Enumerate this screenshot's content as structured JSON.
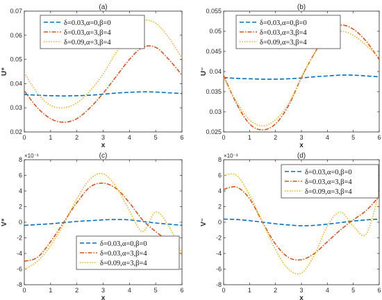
{
  "chart_data": [
    {
      "panel": "(a)",
      "type": "line",
      "title": "(a)",
      "xlabel": "x",
      "ylabel": "U⁺",
      "multiplier": "",
      "xlim": [
        0,
        6
      ],
      "ylim": [
        0.02,
        0.07
      ],
      "xticks": [
        "0",
        "1",
        "2",
        "3",
        "4",
        "5",
        "6"
      ],
      "yticks": [
        "0.02",
        "0.03",
        "0.04",
        "0.05",
        "0.06",
        "0.07"
      ],
      "legend_position": "top-left",
      "x": [
        0,
        0.5,
        1,
        1.5,
        2,
        2.5,
        3,
        3.5,
        4,
        4.5,
        5,
        5.5,
        6
      ],
      "series": [
        {
          "name": "δ=0.03,α=0,β=0",
          "color": "#0072BD",
          "dash": "6,3",
          "values": [
            0.0355,
            0.0352,
            0.035,
            0.0349,
            0.035,
            0.0352,
            0.0356,
            0.0361,
            0.0364,
            0.0366,
            0.0365,
            0.0362,
            0.0359
          ]
        },
        {
          "name": "δ=0.03,α=3,β=4",
          "color": "#D95319",
          "dash": "6,2,1.5,2",
          "values": [
            0.037,
            0.03,
            0.0255,
            0.024,
            0.0255,
            0.03,
            0.036,
            0.043,
            0.05,
            0.055,
            0.055,
            0.05,
            0.0435
          ]
        },
        {
          "name": "δ=0.09,α=3,β=4",
          "color": "#EDB120",
          "dash": "1.5,2",
          "values": [
            0.0445,
            0.036,
            0.031,
            0.03,
            0.032,
            0.037,
            0.044,
            0.053,
            0.061,
            0.066,
            0.065,
            0.059,
            0.0505
          ]
        }
      ]
    },
    {
      "panel": "(b)",
      "type": "line",
      "title": "(b)",
      "xlabel": "x",
      "ylabel": "U⁻",
      "multiplier": "",
      "xlim": [
        0,
        6
      ],
      "ylim": [
        0.025,
        0.055
      ],
      "xticks": [
        "0",
        "1",
        "2",
        "3",
        "4",
        "5",
        "6"
      ],
      "yticks": [
        "0.025",
        "0.03",
        "0.035",
        "0.04",
        "0.045",
        "0.05",
        "0.055"
      ],
      "legend_position": "top-left",
      "x": [
        0,
        0.5,
        1,
        1.5,
        2,
        2.5,
        3,
        3.5,
        4,
        4.5,
        5,
        5.5,
        6
      ],
      "series": [
        {
          "name": "δ=0.03,α=0,β=0",
          "color": "#0072BD",
          "dash": "6,3",
          "values": [
            0.0385,
            0.0383,
            0.0382,
            0.0381,
            0.0381,
            0.0382,
            0.0384,
            0.0387,
            0.0389,
            0.0391,
            0.0391,
            0.0389,
            0.0387
          ]
        },
        {
          "name": "δ=0.03,α=3,β=4",
          "color": "#D95319",
          "dash": "6,2,1.5,2",
          "values": [
            0.039,
            0.032,
            0.027,
            0.0255,
            0.027,
            0.0315,
            0.0385,
            0.0445,
            0.0495,
            0.0515,
            0.0505,
            0.0475,
            0.043
          ]
        },
        {
          "name": "δ=0.09,α=3,β=4",
          "color": "#EDB120",
          "dash": "1.5,2",
          "values": [
            0.0385,
            0.0325,
            0.028,
            0.0265,
            0.028,
            0.032,
            0.0385,
            0.0445,
            0.0485,
            0.05,
            0.049,
            0.0465,
            0.0435
          ]
        }
      ]
    },
    {
      "panel": "(c)",
      "type": "line",
      "title": "(c)",
      "xlabel": "x",
      "ylabel": "V⁺",
      "multiplier": "×10⁻³",
      "xlim": [
        0,
        6
      ],
      "ylim": [
        -8,
        8
      ],
      "xticks": [
        "0",
        "1",
        "2",
        "3",
        "4",
        "5",
        "6"
      ],
      "yticks": [
        "-8",
        "-6",
        "-4",
        "-2",
        "0",
        "2",
        "4",
        "6",
        "8"
      ],
      "legend_position": "bottom-right",
      "x": [
        0,
        0.5,
        1,
        1.5,
        2,
        2.5,
        3,
        3.5,
        4,
        4.5,
        5,
        5.5,
        6
      ],
      "series": [
        {
          "name": "δ=0.03,α=0,β=0",
          "color": "#0072BD",
          "dash": "6,3",
          "values": [
            -0.4,
            -0.3,
            -0.2,
            -0.05,
            0.1,
            0.2,
            0.3,
            0.35,
            0.3,
            0.1,
            -0.1,
            -0.25,
            -0.4
          ]
        },
        {
          "name": "δ=0.03,α=3,β=4",
          "color": "#D95319",
          "dash": "6,2,1.5,2",
          "values": [
            -5.0,
            -4.5,
            -2.5,
            0.0,
            2.5,
            4.5,
            5.0,
            4.3,
            2.5,
            0.3,
            -1.2,
            -2.5,
            -4.2
          ]
        },
        {
          "name": "δ=0.09,α=3,β=4",
          "color": "#EDB120",
          "dash": "1.5,2",
          "values": [
            -6.0,
            -5.0,
            -3.0,
            -0.2,
            3.0,
            5.5,
            6.2,
            4.5,
            1.5,
            -1.2,
            1.3,
            -0.5,
            -4.0
          ]
        }
      ]
    },
    {
      "panel": "(d)",
      "type": "line",
      "title": "(d)",
      "xlabel": "x",
      "ylabel": "V⁻",
      "multiplier": "×10⁻³",
      "xlim": [
        0,
        6
      ],
      "ylim": [
        -8,
        8
      ],
      "xticks": [
        "0",
        "1",
        "2",
        "3",
        "4",
        "5",
        "6"
      ],
      "yticks": [
        "-8",
        "-6",
        "-4",
        "-2",
        "0",
        "2",
        "4",
        "6",
        "8"
      ],
      "legend_position": "top-right",
      "x": [
        0,
        0.5,
        1,
        1.5,
        2,
        2.5,
        3,
        3.5,
        4,
        4.5,
        5,
        5.5,
        6
      ],
      "series": [
        {
          "name": "δ=0.03,α=0,β=0",
          "color": "#0072BD",
          "dash": "6,3",
          "values": [
            0.4,
            0.35,
            0.2,
            0.0,
            -0.2,
            -0.35,
            -0.45,
            -0.4,
            -0.25,
            -0.05,
            0.15,
            0.3,
            0.4
          ]
        },
        {
          "name": "δ=0.03,α=3,β=4",
          "color": "#D95319",
          "dash": "6,2,1.5,2",
          "values": [
            4.2,
            4.5,
            3.0,
            0.0,
            -2.8,
            -4.5,
            -4.8,
            -4.0,
            -2.5,
            -1.0,
            0.3,
            1.5,
            3.3
          ]
        },
        {
          "name": "δ=0.09,α=3,β=4",
          "color": "#EDB120",
          "dash": "1.5,2",
          "values": [
            6.0,
            6.0,
            3.5,
            0.0,
            -3.5,
            -6.0,
            -6.5,
            -4.2,
            -0.5,
            1.3,
            -0.5,
            -1.5,
            3.8
          ]
        }
      ]
    }
  ]
}
